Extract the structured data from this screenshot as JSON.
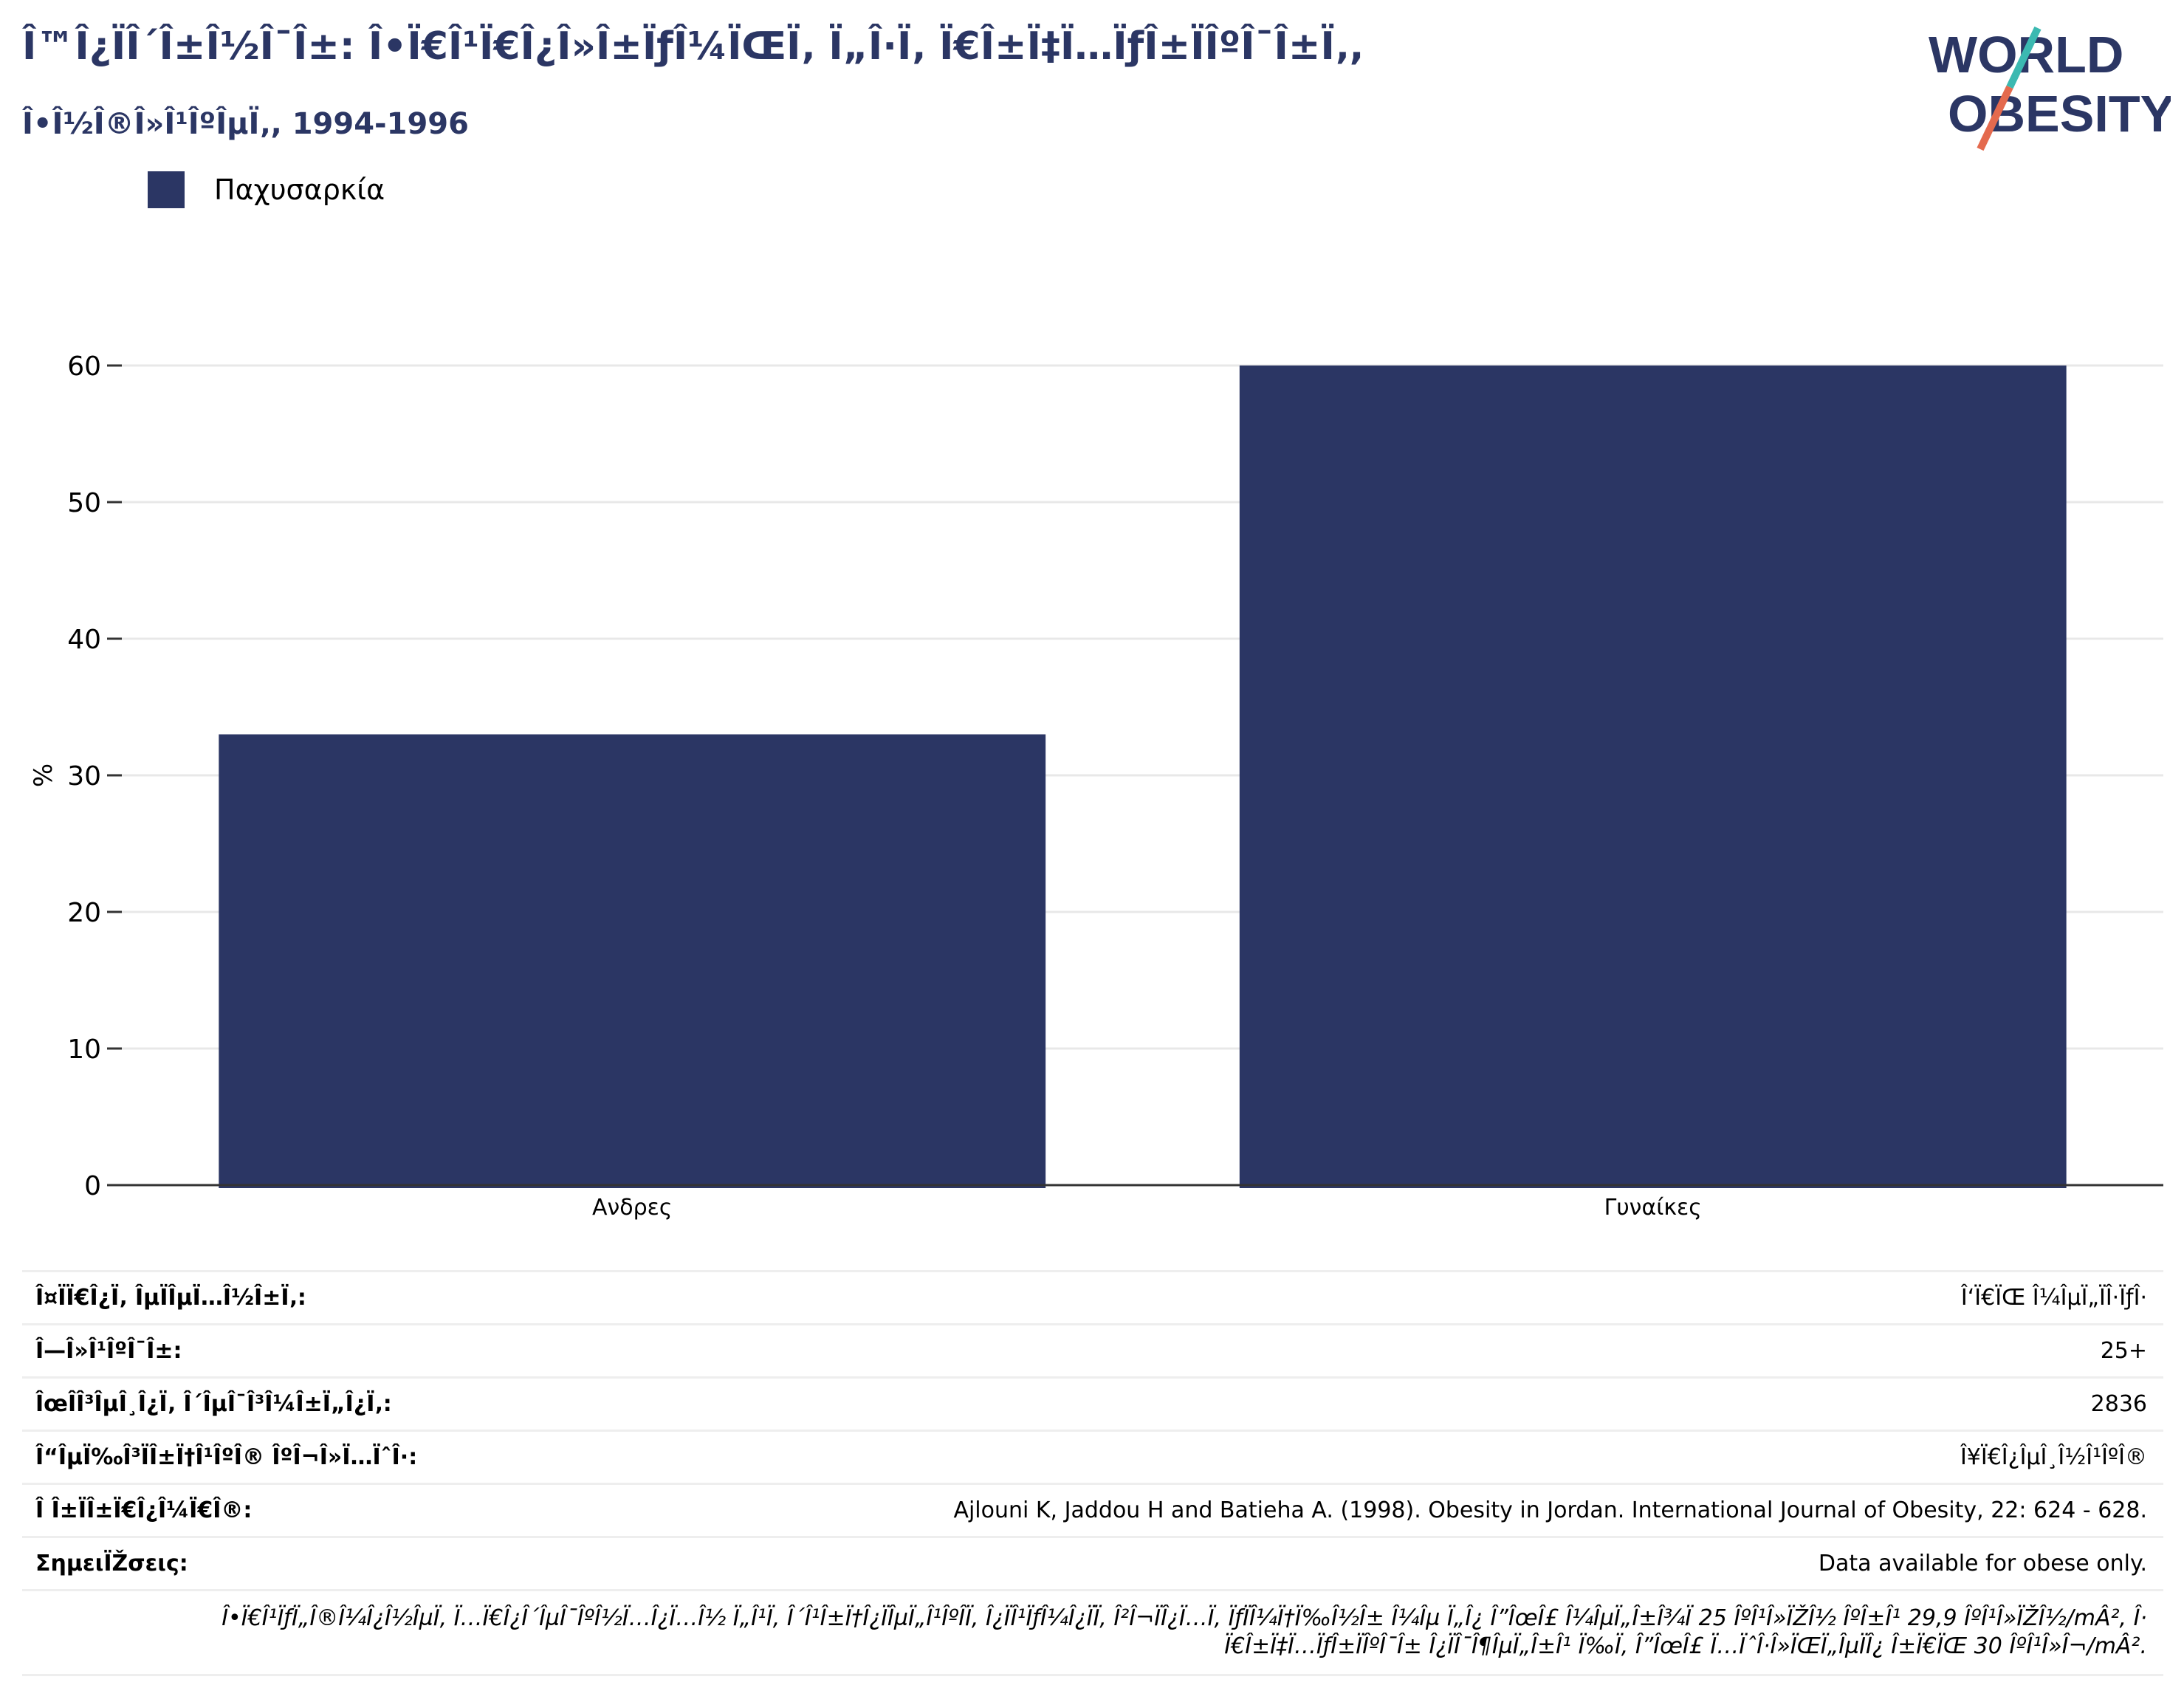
{
  "header": {
    "title_line1": "Î™Î¿ÏÎ´Î±Î½Î¯Î±: Î•Ï€Î¹Ï€Î¿Î»Î±ÏƒÎ¼ÏŒÏ‚ Ï„Î·Ï‚ Ï€Î±Ï‡Ï…ÏƒÎ±ÏÎºÎ¯Î±Ï‚,",
    "title_line2": "Î•Î½Î®Î»Î¹ÎºÎµÏ‚, 1994-1996"
  },
  "logo": {
    "line1": "WORLD",
    "line2": "OBESITY",
    "brand_color": "#2b3664",
    "accent_teal": "#3bb9b1",
    "accent_orange": "#e46a4e"
  },
  "legend": {
    "label": "Παχυσαρκία",
    "color": "#2b3664"
  },
  "chart_data": {
    "type": "bar",
    "categories": [
      "Ανδρες",
      "Γυναίκες"
    ],
    "series": [
      {
        "name": "Παχυσαρκία",
        "values": [
          33,
          60
        ],
        "color": "#2b3664"
      }
    ],
    "ylabel": "%",
    "ylim": [
      0,
      60
    ],
    "yticks": [
      0,
      10,
      20,
      30,
      40,
      50,
      60
    ],
    "grid": true,
    "legend_position": "top-left"
  },
  "info_rows": [
    {
      "key": "Î¤ÏÏ€Î¿Ï‚ ÎµÏÎµÏ…Î½Î±Ï‚:",
      "value": "Î‘Ï€ÏŒ Î¼ÎµÏ„ÏÎ·ÏƒÎ·"
    },
    {
      "key": "Î—Î»Î¹ÎºÎ¯Î±:",
      "value": "25+"
    },
    {
      "key": "ÎœÎ­Î³ÎµÎ¸Î¿Ï‚ Î´ÎµÎ¯Î³Î¼Î±Ï„Î¿Ï‚:",
      "value": "2836"
    },
    {
      "key": "Î“ÎµÏ‰Î³ÏÎ±Ï†Î¹ÎºÎ® ÎºÎ¬Î»Ï…ÏˆÎ·:",
      "value": "Î¥Ï€Î¿ÎµÎ¸Î½Î¹ÎºÎ®"
    },
    {
      "key": "Î Î±ÏÎ±Ï€Î¿Î¼Ï€Î®:",
      "value": "Ajlouni K, Jaddou H and Batieha A. (1998). Obesity in Jordan. International Journal of Obesity, 22: 624 - 628."
    },
    {
      "key": "ΣημειÏŽσεις:",
      "value": "Data available for obese only."
    }
  ],
  "footnote": {
    "line1": "Î•Ï€Î¹ÏƒÏ„Î®Î¼Î¿Î½ÎµÏ‚ Ï…Ï€Î¿Î´ÎµÎ¯ÎºÎ½Ï…Î¿Ï…Î½ Ï„Î¹Ï‚ Î´Î¹Î±Ï†Î¿ÏÎµÏ„Î¹ÎºÎ­Ï‚ Î¿ÏÎ¹ÏƒÎ¼Î¿ÏÏ‚ Î²Î¬ÏÎ¿Ï…Ï‚ ÏƒÏÎ¼Ï†Ï‰Î½Î± Î¼Îµ Ï„Î¿ Î”ÎœÎ£ Î¼ÎµÏ„Î±Î¾Ï 25 ÎºÎ¹Î»ÏŽÎ½ ÎºÎ±Î¹ 29,9 ÎºÎ¹Î»ÏŽÎ½/mÂ², Î·",
    "line2": "Ï€Î±Ï‡Ï…ÏƒÎ±ÏÎºÎ¯Î± Î¿ÏÎ¯Î¶ÎµÏ„Î±Î¹ Ï‰Ï‚ Î”ÎœÎ£ Ï…ÏˆÎ·Î»ÏŒÏ„ÎµÏÎ¿ Î±Ï€ÏŒ 30 ÎºÎ¹Î»Î¬/mÂ²."
  }
}
